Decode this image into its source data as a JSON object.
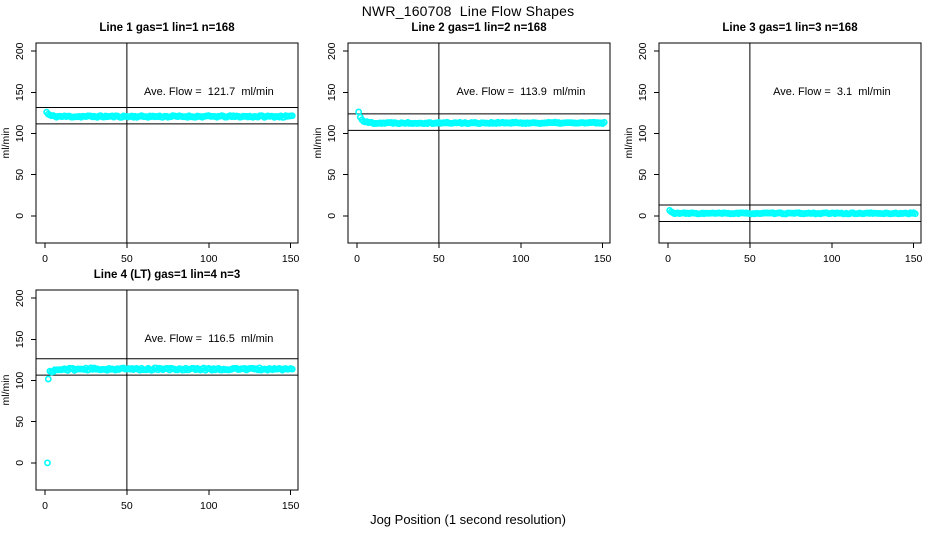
{
  "window": {
    "title": "NWR_160708  Line Flow Shapes",
    "xlabel": "Jog Position (1 second resolution)"
  },
  "chart_data": {
    "type": "scatter",
    "title": "NWR_160708  Line Flow Shapes",
    "xlabel": "Jog Position (1 second resolution)",
    "ylabel": "ml/min",
    "x_ticks": [
      0,
      50,
      100,
      150
    ],
    "y_ticks": [
      0,
      50,
      100,
      150,
      200
    ],
    "x_range": [
      -5.5,
      154.5
    ],
    "y_range": [
      -33,
      210
    ],
    "grid": false,
    "legend": false,
    "point_color": "#00FFFF",
    "line_color": "#000000",
    "vline_x": 50,
    "hline_offset_from_ave": 10,
    "panels": [
      {
        "title": "Line 1 gas=1 lin=1 n=168",
        "n": 168,
        "ave_flow": 121.7,
        "ave_flow_text": "Ave. Flow =  121.7  ml/min",
        "hline_upper": 131.7,
        "hline_lower": 111.7,
        "series": {
          "x_start": 1,
          "x_end": 151,
          "start_y": 126,
          "settle_y": 120.7,
          "tau": 1.5,
          "jitter": 1.1,
          "seed": 11,
          "extra_points": []
        }
      },
      {
        "title": "Line 2 gas=1 lin=2 n=168",
        "n": 168,
        "ave_flow": 113.9,
        "ave_flow_text": "Ave. Flow =  113.9  ml/min",
        "hline_upper": 123.9,
        "hline_lower": 103.9,
        "series": {
          "x_start": 1,
          "x_end": 151,
          "start_y": 126,
          "settle_y": 112.9,
          "tau": 1.8,
          "jitter": 0.9,
          "seed": 22,
          "extra_points": []
        }
      },
      {
        "title": "Line 3 gas=1 lin=3 n=168",
        "n": 168,
        "ave_flow": 3.1,
        "ave_flow_text": "Ave. Flow =  3.1  ml/min",
        "hline_upper": 13.1,
        "hline_lower": -6.9,
        "series": {
          "x_start": 1,
          "x_end": 151,
          "start_y": 6.5,
          "settle_y": 3.0,
          "tau": 1.2,
          "jitter": 0.7,
          "seed": 33,
          "extra_points": []
        }
      },
      {
        "title": "Line 4 (LT) gas=1 lin=4 n=3",
        "n": 3,
        "ave_flow": 116.5,
        "ave_flow_text": "Ave. Flow =  116.5  ml/min",
        "hline_upper": 126.5,
        "hline_lower": 106.5,
        "series": {
          "x_start": 3,
          "x_end": 151,
          "start_y": 110.5,
          "settle_y": 113.9,
          "tau": 4,
          "jitter": 1.4,
          "seed": 44,
          "extra_points": [
            [
              1.5,
              0
            ],
            [
              2,
              101.8
            ]
          ]
        }
      }
    ]
  }
}
